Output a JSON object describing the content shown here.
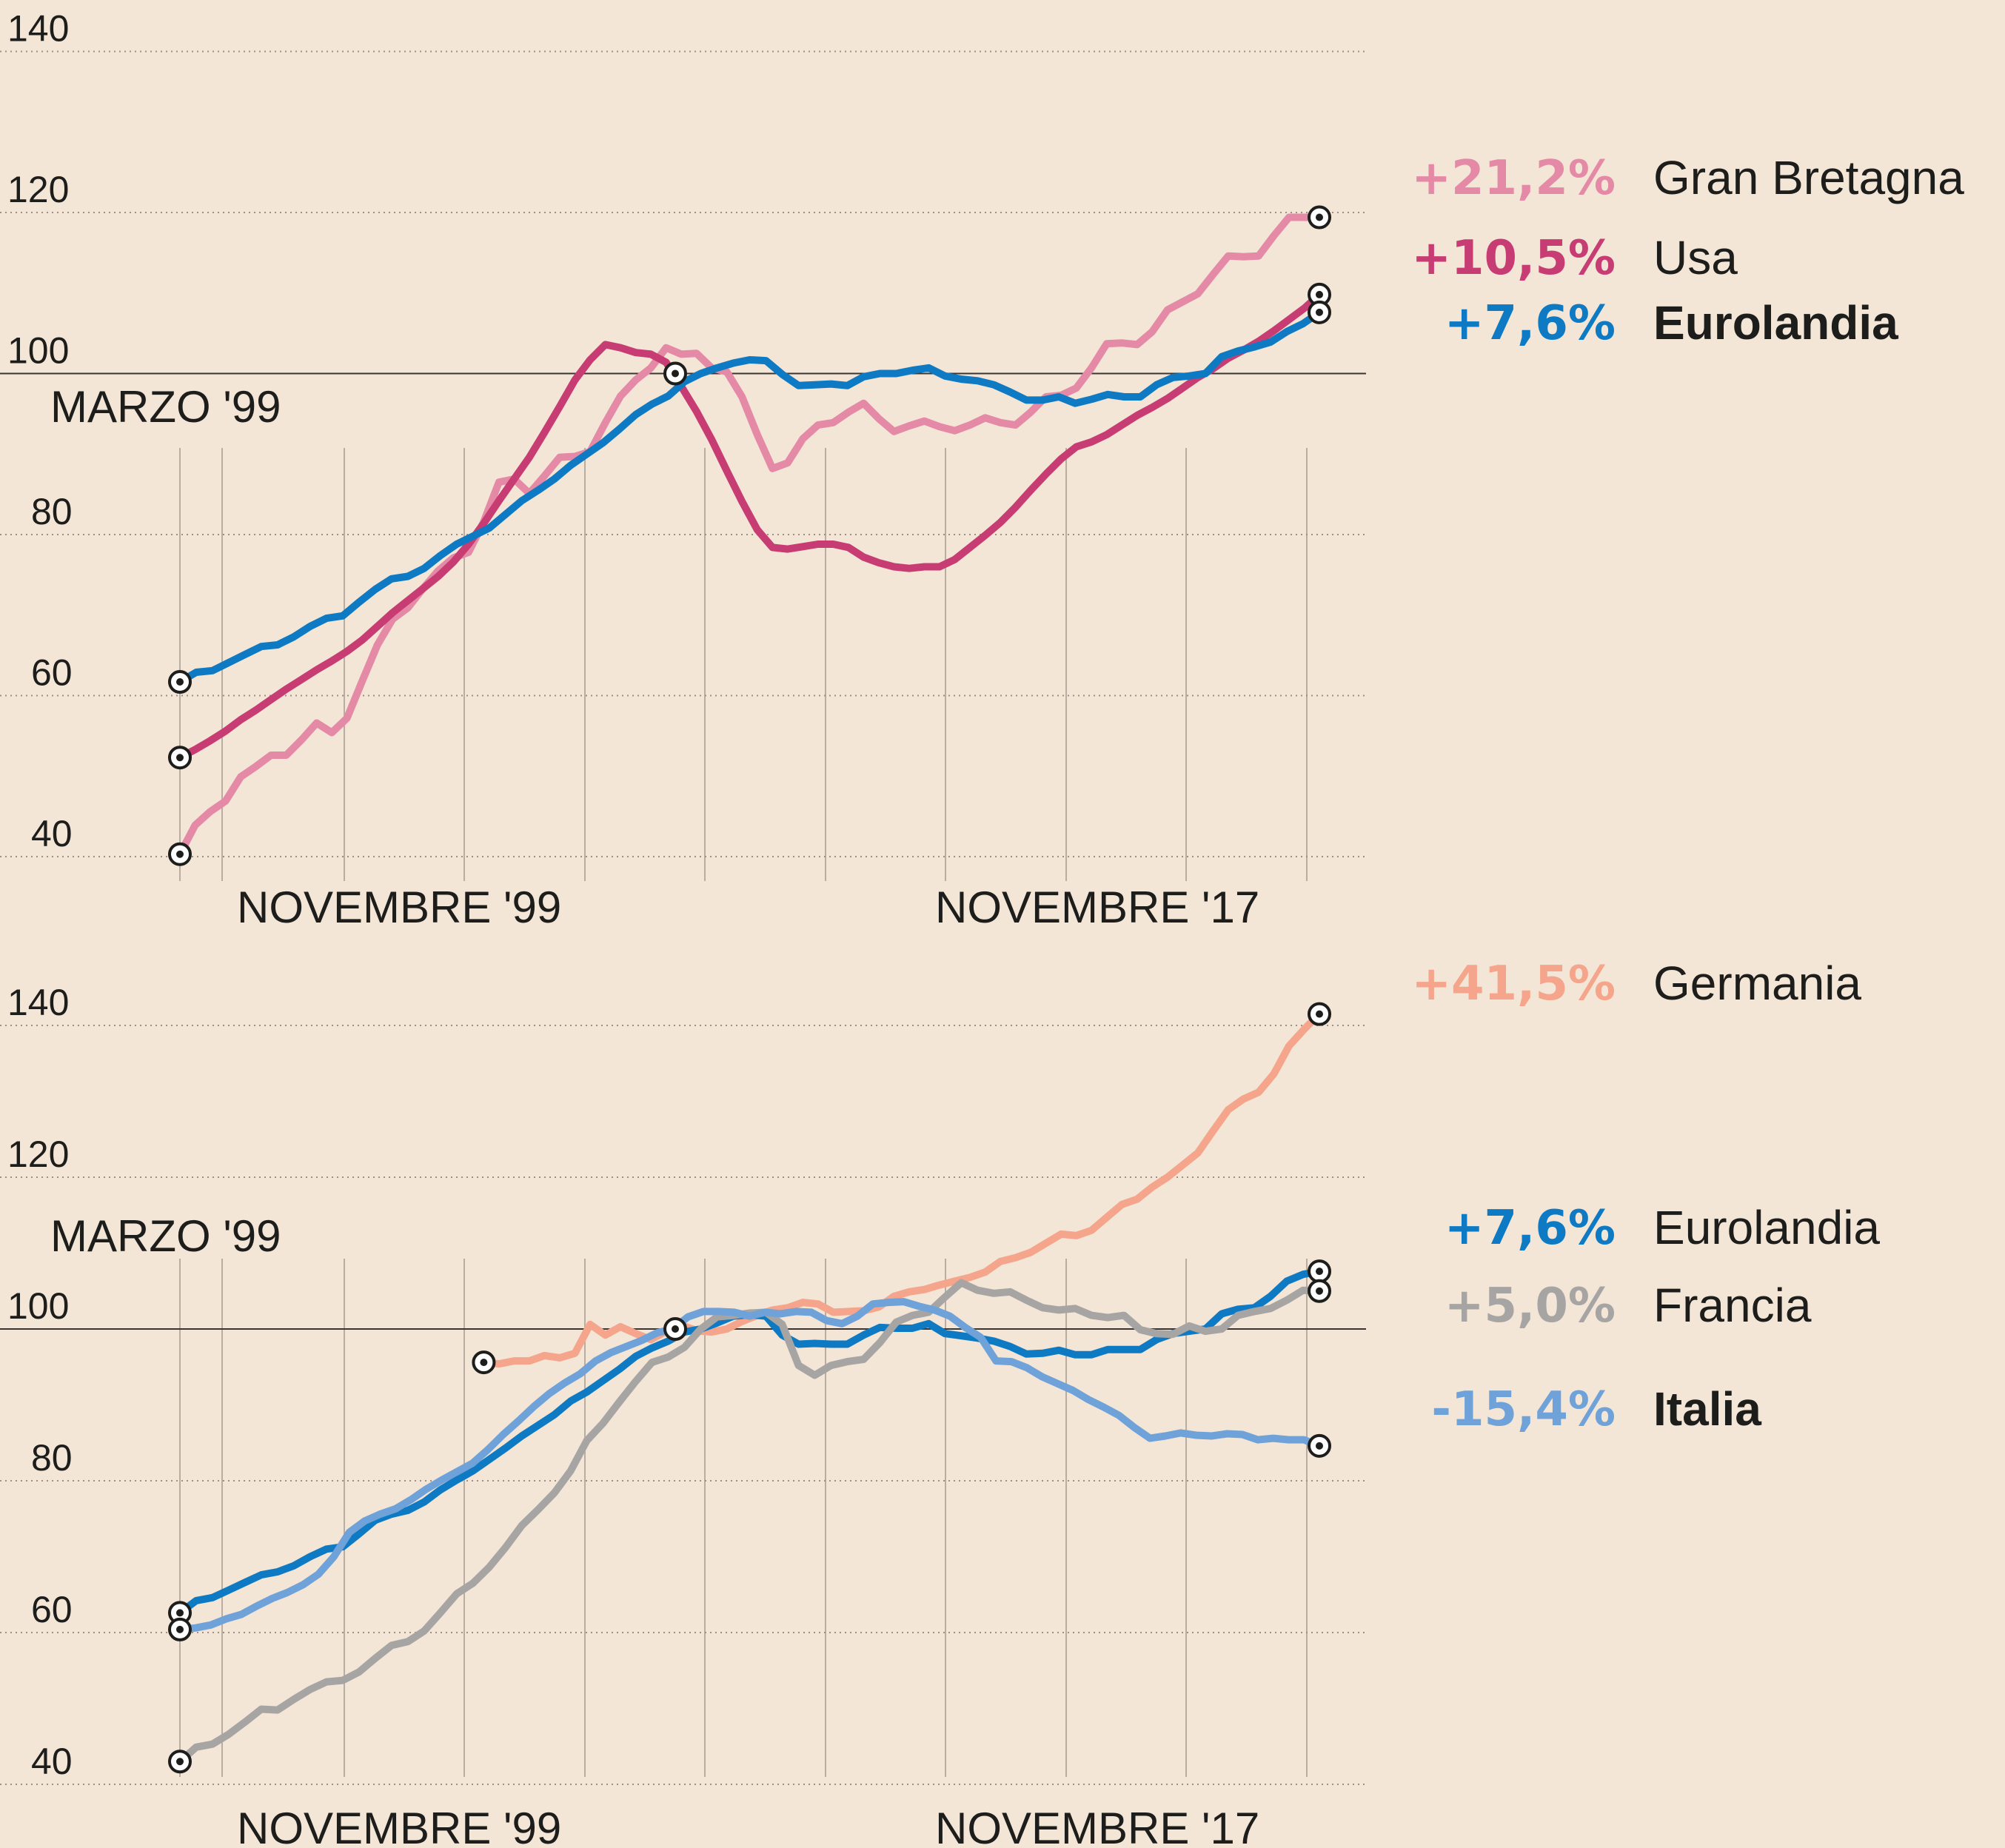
{
  "chart_data": [
    {
      "type": "line",
      "title": "",
      "x_start_label": "MARZO '99",
      "x_labels": [
        "NOVEMBRE '99",
        "NOVEMBRE '17"
      ],
      "yticks": [
        40,
        60,
        80,
        100,
        120,
        140
      ],
      "ylim": [
        38,
        142
      ],
      "x_range": [
        0,
        94
      ],
      "base_index": 41,
      "series": [
        {
          "name": "Gran Bretagna",
          "pct": "+21,2%",
          "color": "#e58aa6",
          "bold": false,
          "values": [
            40.3,
            43.9,
            45.6,
            46.9,
            49.9,
            51.2,
            52.6,
            52.6,
            54.5,
            56.6,
            55.4,
            57.2,
            61.8,
            66.3,
            69.5,
            70.9,
            73.3,
            75.5,
            77.1,
            77.8,
            81.6,
            86.5,
            86.9,
            85.1,
            87.3,
            89.6,
            89.7,
            90.3,
            93.9,
            97.2,
            99.2,
            100.7,
            103.2,
            102.4,
            102.5,
            100.7,
            100.2,
            97.1,
            92.4,
            88.2,
            88.9,
            91.9,
            93.6,
            93.9,
            95.2,
            96.3,
            94.4,
            92.8,
            93.5,
            94.1,
            93.4,
            92.9,
            93.6,
            94.5,
            93.9,
            93.6,
            95.2,
            97.1,
            97.3,
            98.2,
            100.7,
            103.7,
            103.8,
            103.6,
            105.2,
            107.9,
            108.9,
            109.9,
            112.3,
            114.6,
            114.5,
            114.6,
            117.1,
            119.4,
            119.4,
            119.4
          ]
        },
        {
          "name": "Usa",
          "pct": "+10,5%",
          "color": "#c73c73",
          "bold": false,
          "values": [
            52.3,
            53.3,
            54.4,
            55.6,
            57.0,
            58.2,
            59.5,
            60.8,
            62.0,
            63.2,
            64.3,
            65.5,
            66.9,
            68.6,
            70.3,
            71.8,
            73.3,
            74.8,
            76.6,
            78.8,
            81.4,
            84.2,
            86.9,
            89.6,
            92.7,
            95.9,
            99.2,
            101.7,
            103.6,
            103.2,
            102.6,
            102.4,
            101.4,
            98.4,
            95.3,
            91.8,
            87.9,
            84.1,
            80.6,
            78.4,
            78.2,
            78.5,
            78.8,
            78.8,
            78.4,
            77.2,
            76.5,
            76.0,
            75.8,
            76.0,
            76.0,
            76.9,
            78.4,
            79.9,
            81.5,
            83.4,
            85.5,
            87.5,
            89.4,
            90.9,
            91.5,
            92.4,
            93.6,
            94.8,
            95.8,
            96.9,
            98.2,
            99.5,
            100.6,
            101.9,
            102.9,
            104.0,
            105.3,
            106.7,
            108.1,
            109.8
          ]
        },
        {
          "name": "Eurolandia",
          "pct": "+7,6%",
          "color": "#0e7ac4",
          "bold": true,
          "values": [
            61.7,
            62.9,
            63.1,
            64.1,
            65.1,
            66.1,
            66.3,
            67.3,
            68.6,
            69.6,
            69.9,
            71.6,
            73.2,
            74.5,
            74.8,
            75.8,
            77.4,
            78.8,
            79.8,
            80.8,
            82.5,
            84.2,
            85.5,
            86.9,
            88.6,
            90.0,
            91.4,
            93.1,
            94.9,
            96.2,
            97.2,
            99.0,
            100.0,
            100.7,
            101.3,
            101.7,
            101.6,
            99.9,
            98.5,
            98.6,
            98.7,
            98.5,
            99.6,
            100.0,
            100.0,
            100.4,
            100.7,
            99.7,
            99.3,
            99.1,
            98.6,
            97.7,
            96.7,
            96.7,
            97.1,
            96.3,
            96.8,
            97.4,
            97.1,
            97.1,
            98.6,
            99.5,
            99.7,
            100.0,
            102.1,
            102.8,
            103.3,
            103.9,
            105.2,
            106.2,
            107.6
          ]
        }
      ]
    },
    {
      "type": "line",
      "title": "",
      "x_start_label": "MARZO '99",
      "x_labels": [
        "NOVEMBRE '99",
        "NOVEMBRE '17"
      ],
      "yticks": [
        40,
        60,
        80,
        100,
        120,
        140
      ],
      "ylim": [
        38,
        143
      ],
      "x_range": [
        0,
        94
      ],
      "base_index": 41,
      "series": [
        {
          "name": "Germania",
          "pct": "+41,5%",
          "color": "#f4a58b",
          "bold": false,
          "values": [
            95.6,
            95.4,
            95.8,
            95.8,
            96.5,
            96.2,
            96.8,
            100.6,
            99.2,
            100.3,
            99.4,
            98.6,
            99.7,
            100.5,
            99.8,
            99.6,
            100.0,
            101.0,
            101.8,
            102.5,
            102.8,
            103.5,
            103.3,
            102.2,
            102.3,
            102.4,
            102.9,
            104.3,
            104.9,
            105.2,
            105.8,
            106.3,
            106.8,
            107.5,
            108.9,
            109.4,
            110.1,
            111.3,
            112.5,
            112.3,
            113.0,
            114.7,
            116.4,
            117.1,
            118.7,
            120.0,
            121.6,
            123.2,
            126.1,
            128.9,
            130.3,
            131.2,
            133.6,
            137.3,
            139.5,
            141.5
          ],
          "x0": 20
        },
        {
          "name": "Eurolandia",
          "pct": "+7,6%",
          "color": "#0e7ac4",
          "bold": false,
          "values": [
            62.6,
            64.2,
            64.6,
            65.6,
            66.6,
            67.6,
            68.0,
            68.8,
            70.0,
            71.0,
            71.3,
            73.0,
            74.8,
            75.6,
            76.1,
            77.2,
            78.8,
            80.1,
            81.3,
            82.8,
            84.3,
            85.9,
            87.3,
            88.7,
            90.5,
            91.7,
            93.2,
            94.7,
            96.4,
            97.5,
            98.4,
            99.6,
            100.0,
            100.8,
            101.7,
            101.9,
            101.7,
            99.2,
            98.0,
            98.1,
            98.0,
            98.0,
            99.2,
            100.2,
            100.1,
            100.1,
            100.7,
            99.4,
            99.1,
            98.8,
            98.4,
            97.7,
            96.7,
            96.8,
            97.2,
            96.6,
            96.6,
            97.3,
            97.3,
            97.3,
            98.6,
            99.4,
            99.7,
            100.0,
            102.0,
            102.6,
            102.8,
            104.3,
            106.3,
            107.2,
            107.6
          ]
        },
        {
          "name": "Francia",
          "pct": "+5,0%",
          "color": "#a7a5a3",
          "bold": false,
          "values": [
            43.0,
            44.9,
            45.3,
            46.6,
            48.2,
            49.9,
            49.8,
            51.2,
            52.5,
            53.5,
            53.7,
            54.8,
            56.6,
            58.3,
            58.8,
            60.2,
            62.6,
            65.1,
            66.5,
            68.6,
            71.2,
            74.1,
            76.2,
            78.4,
            81.3,
            85.3,
            87.6,
            90.4,
            93.1,
            95.6,
            96.3,
            97.6,
            100.0,
            101.6,
            101.8,
            102.1,
            102.2,
            100.6,
            95.2,
            93.9,
            95.2,
            95.7,
            96.0,
            98.2,
            100.9,
            101.8,
            102.2,
            104.2,
            106.1,
            105.1,
            104.7,
            104.9,
            103.8,
            102.8,
            102.5,
            102.7,
            101.8,
            101.5,
            101.8,
            99.9,
            99.4,
            99.3,
            100.4,
            99.7,
            100.0,
            101.8,
            102.3,
            102.7,
            103.8,
            105.1,
            105.0
          ]
        },
        {
          "name": "Italia",
          "pct": "-15,4%",
          "color": "#6ea2d9",
          "bold": true,
          "values": [
            60.4,
            60.6,
            61.0,
            61.8,
            62.4,
            63.5,
            64.5,
            65.3,
            66.3,
            67.7,
            70.0,
            73.2,
            74.7,
            75.6,
            76.3,
            77.5,
            78.9,
            80.1,
            81.2,
            82.3,
            84.1,
            86.1,
            87.9,
            89.8,
            91.5,
            92.9,
            94.1,
            95.8,
            96.9,
            97.7,
            98.5,
            99.5,
            100.0,
            101.6,
            102.3,
            102.3,
            102.2,
            101.7,
            102.2,
            102.0,
            102.3,
            102.2,
            101.1,
            100.7,
            101.7,
            103.3,
            103.5,
            103.6,
            103.0,
            102.5,
            101.7,
            100.2,
            98.9,
            95.8,
            95.7,
            94.9,
            93.7,
            92.8,
            91.9,
            90.7,
            89.7,
            88.6,
            87.0,
            85.6,
            85.9,
            86.3,
            86.0,
            85.9,
            86.2,
            86.1,
            85.4,
            85.6,
            85.4,
            85.4,
            84.6
          ]
        }
      ]
    }
  ]
}
